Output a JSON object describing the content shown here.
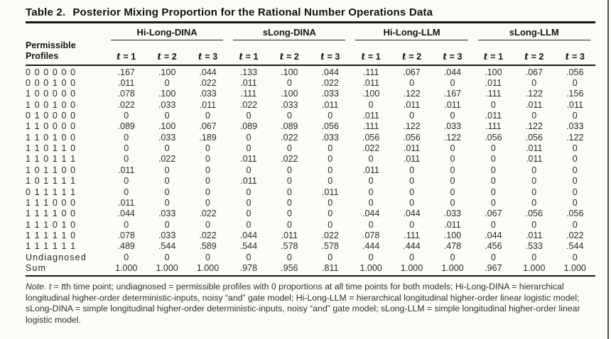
{
  "title": {
    "label": "Table 2.",
    "text": "Posterior Mixing Proportion for the Rational Number Operations Data"
  },
  "table": {
    "row_header": {
      "line1": "Permissible",
      "line2": "Profiles"
    },
    "groups": [
      "Hi-Long-DINA",
      "sLong-DINA",
      "Hi-Long-LLM",
      "sLong-LLM"
    ],
    "time_headers": [
      "t = 1",
      "t = 2",
      "t = 3"
    ],
    "rows": [
      {
        "profile": "0 0 0 0 0 0",
        "values": [
          ".167",
          ".100",
          ".044",
          ".133",
          ".100",
          ".044",
          ".111",
          ".067",
          ".044",
          ".100",
          ".067",
          ".056"
        ]
      },
      {
        "profile": "0 0 0 1 0 0",
        "values": [
          ".011",
          "0",
          ".022",
          ".011",
          "0",
          ".022",
          ".011",
          "0",
          "0",
          ".011",
          "0",
          "0"
        ]
      },
      {
        "profile": "1 0 0 0 0 0",
        "values": [
          ".078",
          ".100",
          ".033",
          ".111",
          ".100",
          ".033",
          ".100",
          ".122",
          ".167",
          ".111",
          ".122",
          ".156"
        ]
      },
      {
        "profile": "1 0 0 1 0 0",
        "values": [
          ".022",
          ".033",
          ".011",
          ".022",
          ".033",
          ".011",
          "0",
          ".011",
          ".011",
          "0",
          ".011",
          ".011"
        ]
      },
      {
        "profile": "0 1 0 0 0 0",
        "values": [
          "0",
          "0",
          "0",
          "0",
          "0",
          "0",
          ".011",
          "0",
          "0",
          ".011",
          "0",
          "0"
        ]
      },
      {
        "profile": "1 1 0 0 0 0",
        "values": [
          ".089",
          ".100",
          ".067",
          ".089",
          ".089",
          ".056",
          ".111",
          ".122",
          ".033",
          ".111",
          ".122",
          ".033"
        ]
      },
      {
        "profile": "1 1 0 1 0 0",
        "values": [
          "0",
          ".033",
          ".189",
          "0",
          ".022",
          ".033",
          ".056",
          ".056",
          ".122",
          ".056",
          ".056",
          ".122"
        ]
      },
      {
        "profile": "1 1 0 1 1 0",
        "values": [
          "0",
          "0",
          "0",
          "0",
          "0",
          "0",
          ".022",
          ".011",
          "0",
          "0",
          ".011",
          "0"
        ]
      },
      {
        "profile": "1 1 0 1 1 1",
        "values": [
          "0",
          ".022",
          "0",
          ".011",
          ".022",
          "0",
          "0",
          ".011",
          "0",
          "0",
          ".011",
          "0"
        ]
      },
      {
        "profile": "1 0 1 1 0 0",
        "values": [
          ".011",
          "0",
          "0",
          "0",
          "0",
          "0",
          ".011",
          "0",
          "0",
          "0",
          "0",
          "0"
        ]
      },
      {
        "profile": "1 0 1 1 1 1",
        "values": [
          "0",
          "0",
          "0",
          ".011",
          "0",
          "0",
          "0",
          "0",
          "0",
          "0",
          "0",
          "0"
        ]
      },
      {
        "profile": "0 1 1 1 1 1",
        "values": [
          "0",
          "0",
          "0",
          "0",
          "0",
          ".011",
          "0",
          "0",
          "0",
          "0",
          "0",
          "0"
        ]
      },
      {
        "profile": "1 1 1 0 0 0",
        "values": [
          ".011",
          "0",
          "0",
          "0",
          "0",
          "0",
          "0",
          "0",
          "0",
          "0",
          "0",
          "0"
        ]
      },
      {
        "profile": "1 1 1 1 0 0",
        "values": [
          ".044",
          ".033",
          ".022",
          "0",
          "0",
          "0",
          ".044",
          ".044",
          ".033",
          ".067",
          ".056",
          ".056"
        ]
      },
      {
        "profile": "1 1 1 0 1 0",
        "values": [
          "0",
          "0",
          "0",
          "0",
          "0",
          "0",
          "0",
          "0",
          ".011",
          "0",
          "0",
          "0"
        ]
      },
      {
        "profile": "1 1 1 1 1 0",
        "values": [
          ".078",
          ".033",
          ".022",
          ".044",
          ".011",
          ".022",
          ".078",
          ".111",
          ".100",
          ".044",
          ".011",
          ".022"
        ]
      },
      {
        "profile": "1 1 1 1 1 1",
        "values": [
          ".489",
          ".544",
          ".589",
          ".544",
          ".578",
          ".578",
          ".444",
          ".444",
          ".478",
          ".456",
          ".533",
          ".544"
        ]
      },
      {
        "profile": "Undiagnosed",
        "values": [
          "0",
          "0",
          "0",
          "0",
          "0",
          "0",
          "0",
          "0",
          "0",
          "0",
          "0",
          "0"
        ]
      },
      {
        "profile": "Sum",
        "values": [
          "1.000",
          "1.000",
          "1.000",
          ".978",
          ".956",
          ".811",
          "1.000",
          "1.000",
          "1.000",
          ".967",
          "1.000",
          "1.000"
        ]
      }
    ]
  },
  "note": {
    "segments": [
      {
        "text": "Note. ",
        "italic": true
      },
      {
        "text": "t",
        "italic": true
      },
      {
        "text": " = ",
        "italic": false
      },
      {
        "text": "t",
        "italic": true
      },
      {
        "text": "th time point; undiagnosed = permissible profiles with 0 proportions at all time points for both models; Hi-Long-DINA = hierarchical longitudinal higher-order deterministic-inputs, noisy “and” gate model; Hi-Long-LLM = hierarchical longitudinal higher-order linear logistic model; sLong-DINA = simple longitudinal higher-order deterministic-inputs, noisy “and” gate model; sLong-LLM = simple longitudinal higher-order linear logistic model.",
        "italic": false
      }
    ]
  }
}
